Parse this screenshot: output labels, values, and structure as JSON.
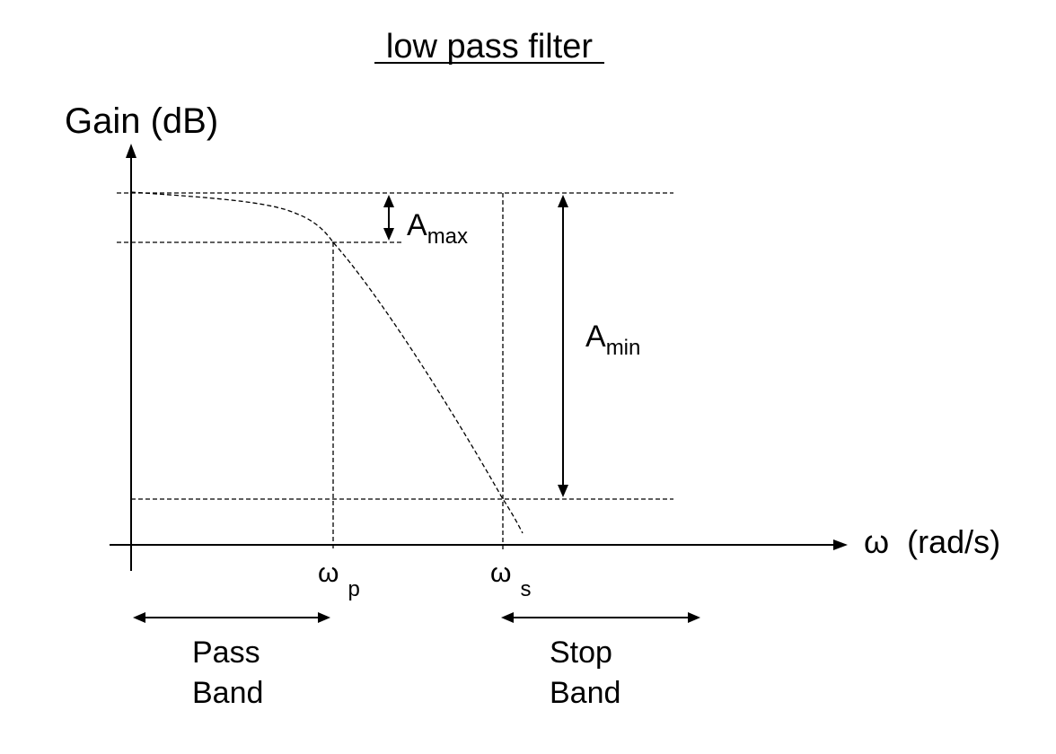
{
  "title": "low pass filter",
  "axis": {
    "y_label": "Gain (dB)",
    "x_label": "ω  (rad/s)"
  },
  "annotations": {
    "a_max": {
      "base": "A",
      "sub": "max"
    },
    "a_min": {
      "base": "A",
      "sub": "min"
    },
    "omega_p": {
      "base": "ω",
      "sub": "p"
    },
    "omega_s": {
      "base": "ω",
      "sub": "s"
    }
  },
  "bands": {
    "pass": [
      "Pass",
      "Band"
    ],
    "stop": [
      "Stop",
      "Band"
    ]
  }
}
